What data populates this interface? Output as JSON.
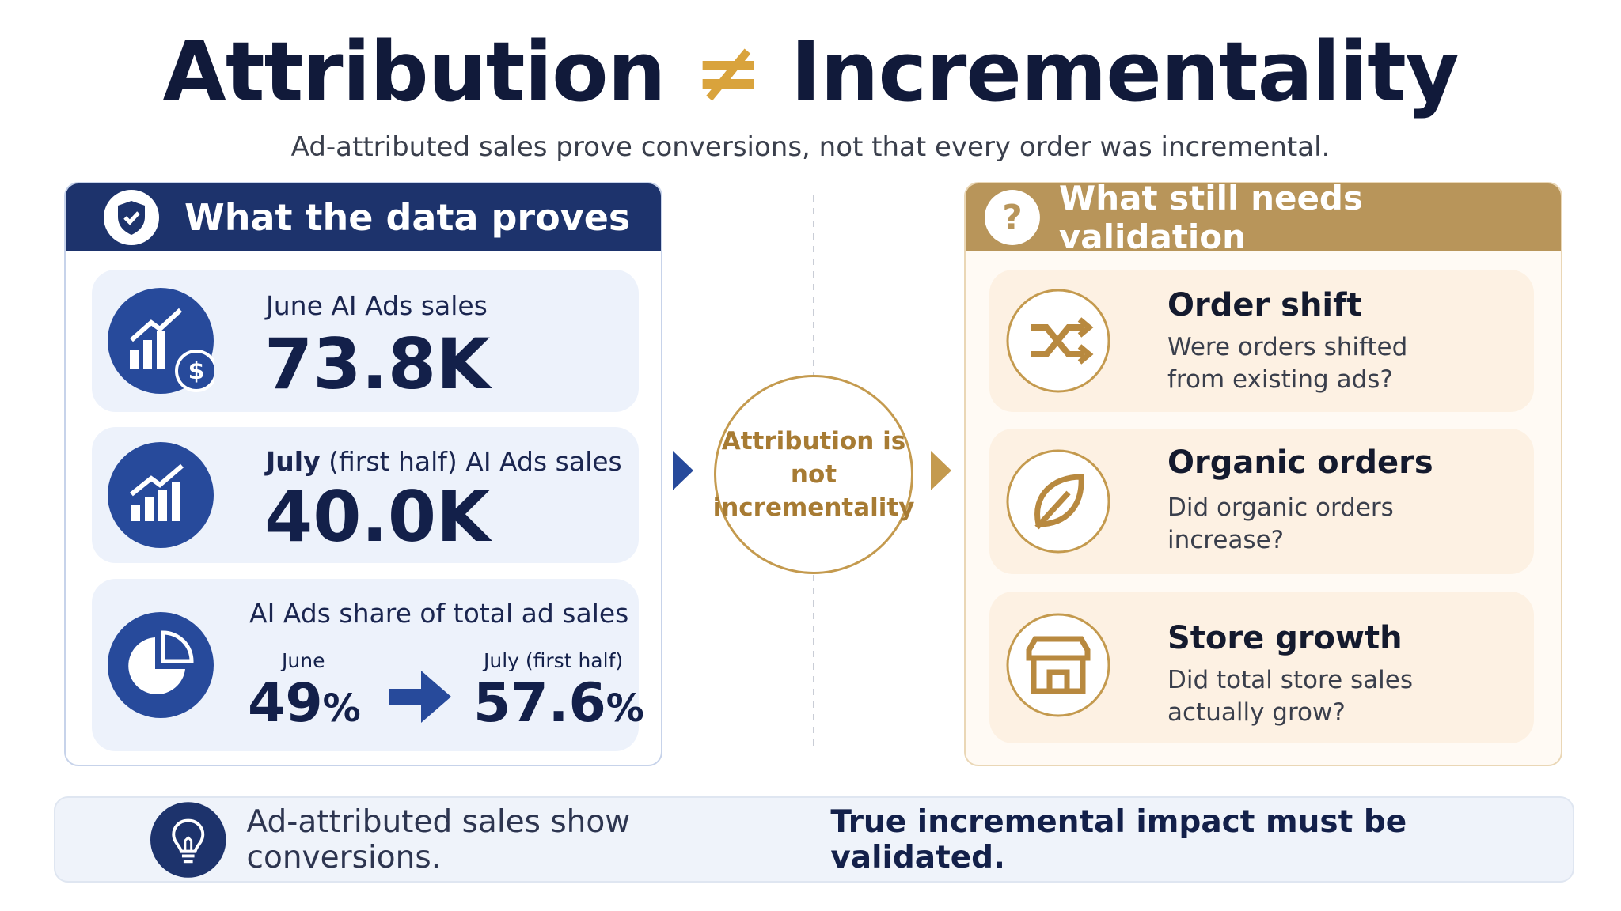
{
  "header": {
    "title_left": "Attribution",
    "title_sign": "≠",
    "title_right": "Incrementality",
    "subtitle": "Ad-attributed sales prove conversions, not that every order was incremental."
  },
  "left_panel": {
    "title": "What the data proves",
    "cards": [
      {
        "label": "June AI Ads sales",
        "value": "73.8K"
      },
      {
        "label_bold": "July",
        "label": "(first half) AI Ads sales",
        "value": "40.0K"
      },
      {
        "label": "AI Ads share of total ad sales",
        "from_label": "June",
        "from_value": "49",
        "from_unit": "%",
        "to_label": "July (first half)",
        "to_value": "57.6",
        "to_unit": "%"
      }
    ]
  },
  "center": {
    "label": "Attribution is not incrementality"
  },
  "right_panel": {
    "title": "What still needs validation",
    "cards": [
      {
        "title": "Order shift",
        "text": "Were orders shifted from existing ads?"
      },
      {
        "title": "Organic orders",
        "text": "Did organic orders increase?"
      },
      {
        "title": "Store growth",
        "text": "Did total store sales actually grow?"
      }
    ]
  },
  "footer": {
    "text": "Ad-attributed sales show conversions.",
    "emphasis": "True incremental impact must be validated."
  }
}
